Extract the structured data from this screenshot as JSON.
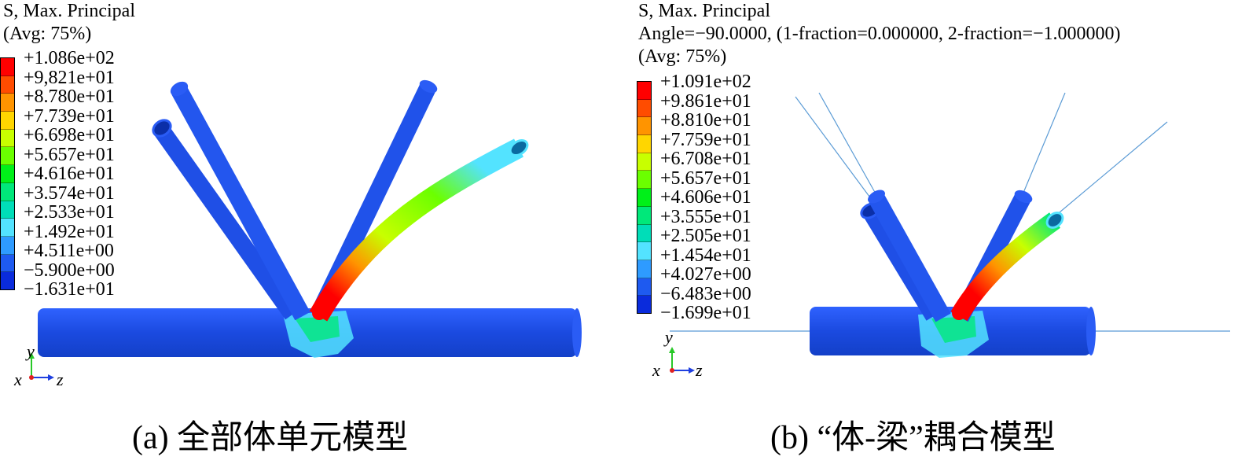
{
  "panels": [
    {
      "id": "a",
      "header_lines": [
        "S, Max. Principal",
        "(Avg: 75%)"
      ],
      "legend_values": [
        "+1.086e+02",
        "+9,821e+01",
        "+8.780e+01",
        "+7.739e+01",
        "+6.698e+01",
        "+5.657e+01",
        "+4.616e+01",
        "+3.574e+01",
        "+2.533e+01",
        "+1.492e+01",
        "+4.511e+00",
        "−5.900e+00",
        "−1.631e+01"
      ],
      "axes": {
        "y": "y",
        "x": "x",
        "z": "z"
      },
      "caption": "(a) 全部体单元模型"
    },
    {
      "id": "b",
      "header_lines": [
        "S, Max. Principal",
        "Angle=−90.0000, (1-fraction=0.000000, 2-fraction=−1.000000)",
        "(Avg: 75%)"
      ],
      "legend_values": [
        "+1.091e+02",
        "+9.861e+01",
        "+8.810e+01",
        "+7.759e+01",
        "+6.708e+01",
        "+5.657e+01",
        "+4.606e+01",
        "+3.555e+01",
        "+2.505e+01",
        "+1.454e+01",
        "+4.027e+00",
        "−6.483e+00",
        "−1.699e+01"
      ],
      "axes": {
        "y": "y",
        "x": "x",
        "z": "z"
      },
      "caption": "(b) “体-梁”耦合模型"
    }
  ],
  "colors": {
    "contour_scale": [
      "#ff0000",
      "#ff4c00",
      "#ff9400",
      "#ffd600",
      "#c8ff00",
      "#6bff00",
      "#00f019",
      "#00e87a",
      "#00ddb8",
      "#53e3ff",
      "#2e9bff",
      "#1e5af0",
      "#0a2bdc"
    ],
    "member_blue": "#1f4fe6",
    "beam_line": "#5b9bd5"
  }
}
